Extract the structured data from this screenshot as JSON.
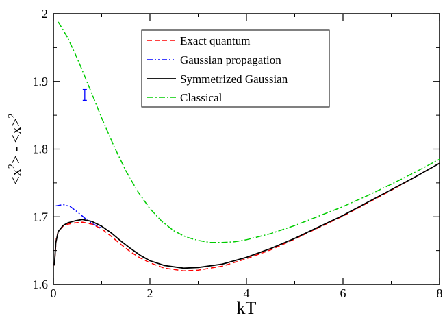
{
  "chart_data": {
    "type": "line",
    "title": "",
    "xlabel": "kT",
    "ylabel": {
      "main": "<x",
      "sup": "2",
      "mid": "> - <x>",
      "sup2": "2"
    },
    "xlim": [
      0,
      8
    ],
    "ylim": [
      1.6,
      2.0
    ],
    "x_ticks": [
      0,
      2,
      4,
      6,
      8
    ],
    "y_ticks": [
      1.6,
      1.7,
      1.8,
      1.9,
      2.0
    ],
    "x_tick_labels": [
      "0",
      "2",
      "4",
      "6",
      "8"
    ],
    "y_tick_labels": [
      "1.6",
      "1.7",
      "1.8",
      "1.9",
      "2"
    ],
    "grid": false,
    "legend_position": "top-center",
    "series": [
      {
        "name": "Exact quantum",
        "color": "#ff0000",
        "dash": "dashed",
        "points": [
          [
            0.02,
            1.628
          ],
          [
            0.06,
            1.668
          ],
          [
            0.1,
            1.678
          ],
          [
            0.2,
            1.686
          ],
          [
            0.3,
            1.689
          ],
          [
            0.45,
            1.691
          ],
          [
            0.6,
            1.692
          ],
          [
            0.8,
            1.689
          ],
          [
            1.0,
            1.682
          ],
          [
            1.2,
            1.671
          ],
          [
            1.4,
            1.659
          ],
          [
            1.6,
            1.648
          ],
          [
            1.8,
            1.639
          ],
          [
            2.0,
            1.632
          ],
          [
            2.3,
            1.624
          ],
          [
            2.7,
            1.62
          ],
          [
            3.0,
            1.621
          ],
          [
            3.5,
            1.627
          ],
          [
            4.0,
            1.638
          ],
          [
            4.5,
            1.651
          ],
          [
            5.0,
            1.667
          ],
          [
            5.5,
            1.684
          ],
          [
            6.0,
            1.701
          ],
          [
            6.5,
            1.72
          ],
          [
            7.0,
            1.739
          ],
          [
            7.5,
            1.759
          ],
          [
            8.0,
            1.779
          ]
        ]
      },
      {
        "name": "Gaussian propagation",
        "color": "#0000ff",
        "dash": "dash-dot-dot",
        "points": [
          [
            0.05,
            1.716
          ],
          [
            0.2,
            1.718
          ],
          [
            0.35,
            1.715
          ],
          [
            0.5,
            1.707
          ],
          [
            0.65,
            1.698
          ],
          [
            0.8,
            1.69
          ],
          [
            1.0,
            1.683
          ]
        ]
      },
      {
        "name": "Symmetrized Gaussian",
        "color": "#000000",
        "dash": "solid",
        "points": [
          [
            0.02,
            1.628
          ],
          [
            0.05,
            1.662
          ],
          [
            0.1,
            1.678
          ],
          [
            0.2,
            1.687
          ],
          [
            0.3,
            1.691
          ],
          [
            0.45,
            1.694
          ],
          [
            0.6,
            1.696
          ],
          [
            0.8,
            1.693
          ],
          [
            1.0,
            1.686
          ],
          [
            1.2,
            1.676
          ],
          [
            1.4,
            1.664
          ],
          [
            1.6,
            1.653
          ],
          [
            1.8,
            1.643
          ],
          [
            2.0,
            1.635
          ],
          [
            2.3,
            1.628
          ],
          [
            2.7,
            1.624
          ],
          [
            3.0,
            1.625
          ],
          [
            3.5,
            1.63
          ],
          [
            4.0,
            1.64
          ],
          [
            4.5,
            1.653
          ],
          [
            5.0,
            1.668
          ],
          [
            5.5,
            1.685
          ],
          [
            6.0,
            1.702
          ],
          [
            6.5,
            1.721
          ],
          [
            7.0,
            1.74
          ],
          [
            7.5,
            1.759
          ],
          [
            8.0,
            1.779
          ]
        ]
      },
      {
        "name": "Classical",
        "color": "#00cc00",
        "dash": "dash-dot",
        "points": [
          [
            0.1,
            1.988
          ],
          [
            0.3,
            1.964
          ],
          [
            0.5,
            1.933
          ],
          [
            0.75,
            1.89
          ],
          [
            1.0,
            1.846
          ],
          [
            1.25,
            1.805
          ],
          [
            1.5,
            1.768
          ],
          [
            1.75,
            1.737
          ],
          [
            2.0,
            1.712
          ],
          [
            2.25,
            1.693
          ],
          [
            2.5,
            1.679
          ],
          [
            2.75,
            1.67
          ],
          [
            3.0,
            1.665
          ],
          [
            3.25,
            1.662
          ],
          [
            3.5,
            1.662
          ],
          [
            3.75,
            1.663
          ],
          [
            4.0,
            1.666
          ],
          [
            4.5,
            1.675
          ],
          [
            5.0,
            1.687
          ],
          [
            5.5,
            1.701
          ],
          [
            6.0,
            1.715
          ],
          [
            6.5,
            1.731
          ],
          [
            7.0,
            1.748
          ],
          [
            7.5,
            1.766
          ],
          [
            8.0,
            1.785
          ]
        ]
      }
    ],
    "error_bar": {
      "color": "#0000ff",
      "x": 0.65,
      "y_low": 1.872,
      "y_high": 1.888
    }
  }
}
